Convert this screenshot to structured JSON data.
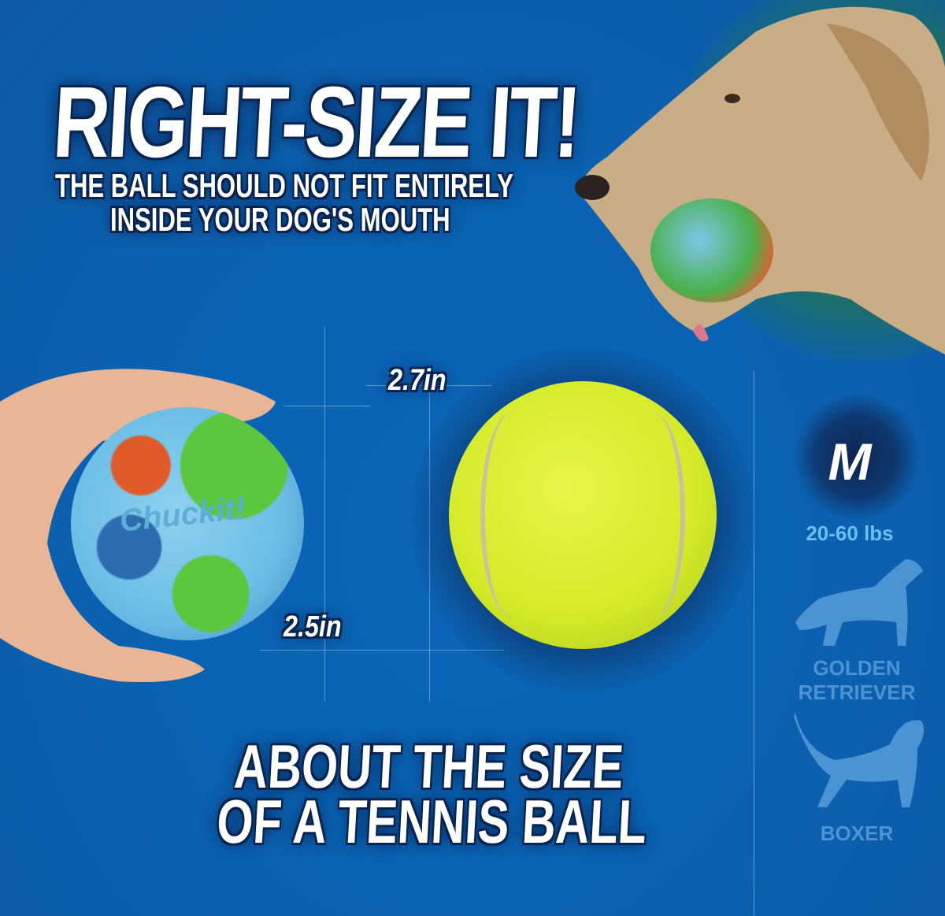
{
  "headline": {
    "title": "RIGHT-SIZE IT!",
    "subtitle_line1": "THE BALL SHOULD NOT FIT ENTIRELY",
    "subtitle_line2": "INSIDE YOUR DOG'S MOUTH"
  },
  "measurements": {
    "tennis_ball": "2.7in",
    "chuckit_ball": "2.5in"
  },
  "footer": {
    "line1": "ABOUT THE SIZE",
    "line2": "OF A TENNIS BALL"
  },
  "size_panel": {
    "size": "M",
    "weight_range": "20-60 lbs",
    "breeds": [
      "GOLDEN RETRIEVER",
      "BOXER"
    ]
  },
  "logo": "Chuckit!",
  "colors": {
    "background": "#0a63b3",
    "navy": "#0b2550",
    "weight_text": "#6cc0f0",
    "silhouette": "#4b93d2",
    "tennis_ball": "#d8ee2a"
  }
}
